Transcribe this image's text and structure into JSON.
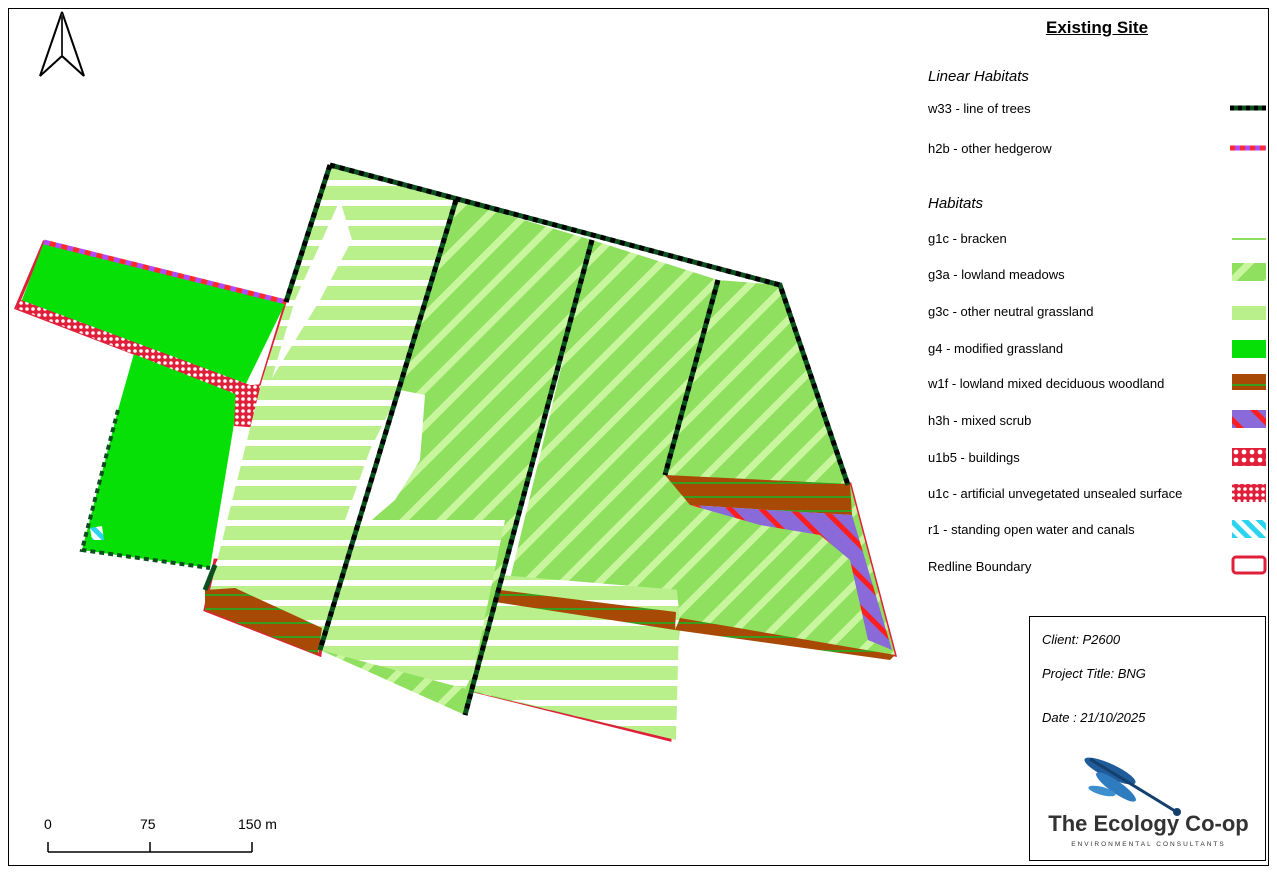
{
  "title": "Existing Site",
  "legend": {
    "linear_heading": "Linear Habitats",
    "linear": [
      {
        "label": "w33 - line of trees",
        "symbol": "line-trees",
        "colors": [
          "#0b4f1e",
          "#000000"
        ]
      },
      {
        "label": "h2b - other hedgerow",
        "symbol": "line-hedge",
        "colors": [
          "#b04aff",
          "#ff2a2a"
        ]
      }
    ],
    "habitat_heading": "Habitats",
    "habitats": [
      {
        "label": "g1c - bracken",
        "symbol": "bracken",
        "colors": [
          "#8ee05e"
        ]
      },
      {
        "label": "g3a - lowland meadows",
        "symbol": "meadow",
        "colors": [
          "#8ee05e",
          "#c9f59f"
        ]
      },
      {
        "label": "g3c - other neutral grassland",
        "symbol": "neutral",
        "colors": [
          "#b9f08c",
          "#ffffff"
        ]
      },
      {
        "label": "g4 - modified grassland",
        "symbol": "modified",
        "colors": [
          "#06e006"
        ]
      },
      {
        "label": "w1f - lowland mixed deciduous woodland",
        "symbol": "woodland",
        "colors": [
          "#a84a05",
          "#3a9c1e"
        ]
      },
      {
        "label": "h3h - mixed scrub",
        "symbol": "scrub",
        "colors": [
          "#8a6ad8",
          "#ff1e1e"
        ]
      },
      {
        "label": "u1b5 - buildings",
        "symbol": "buildings",
        "colors": [
          "#e0203a",
          "#ffffff"
        ]
      },
      {
        "label": "u1c - artificial unvegetated unsealed surface",
        "symbol": "unsealed",
        "colors": [
          "#e0203a",
          "#ffffff"
        ]
      },
      {
        "label": "r1 - standing open water and canals",
        "symbol": "water",
        "colors": [
          "#2ad4f0",
          "#ffffff"
        ]
      },
      {
        "label": "Redline Boundary",
        "symbol": "redline",
        "colors": [
          "#e0203a"
        ]
      }
    ]
  },
  "info": {
    "client": "Client: P2600",
    "project": "Project Title: BNG",
    "date": "Date : 21/10/2025",
    "logo_name": "The Ecology Co-op",
    "logo_sub": "ENVIRONMENTAL CONSULTANTS"
  },
  "scale": {
    "labels": [
      "0",
      "75",
      "150 m"
    ]
  }
}
